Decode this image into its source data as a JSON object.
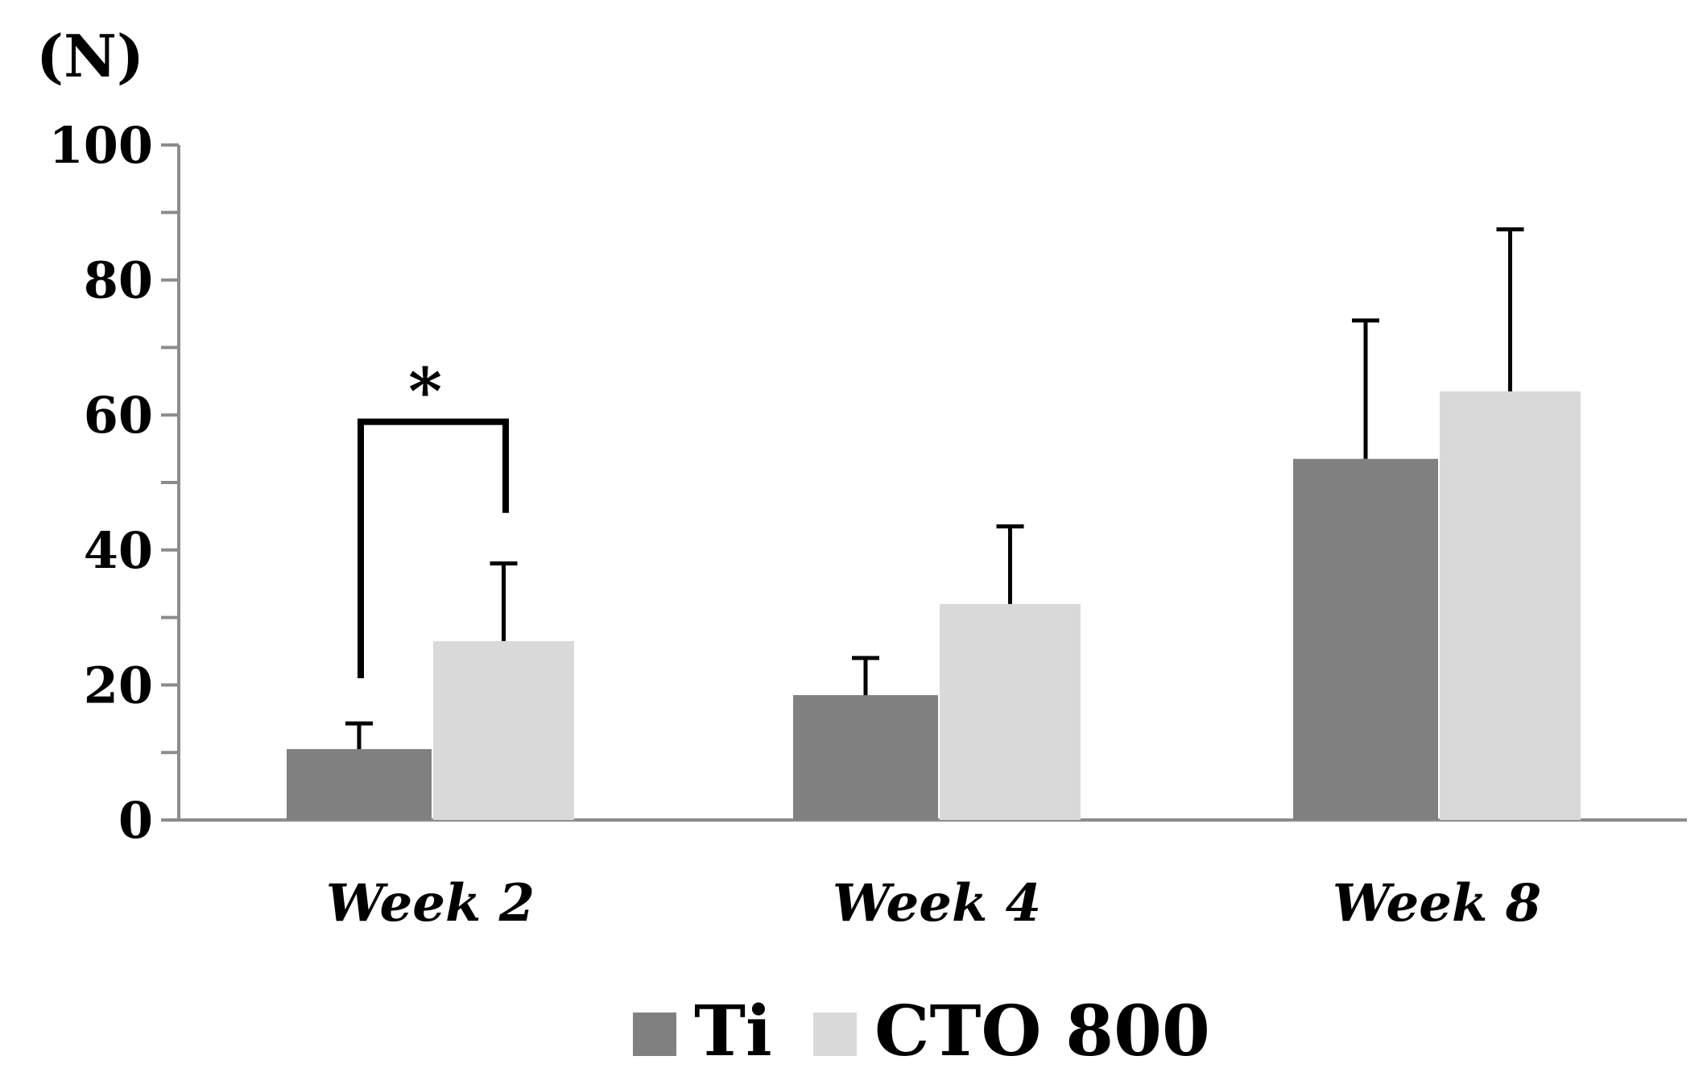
{
  "chart_data": {
    "type": "bar",
    "ylabel": "(N)",
    "xlabel": "",
    "ylim": [
      0,
      100
    ],
    "y_ticks": [
      "0",
      "20",
      "40",
      "60",
      "80",
      "100"
    ],
    "y_tick_values": [
      0,
      20,
      40,
      60,
      80,
      100
    ],
    "categories": [
      "Week 2",
      "Week 4",
      "Week 8"
    ],
    "series": [
      {
        "name": "Ti",
        "color": "#808080",
        "values": [
          10.5,
          18.5,
          53.5
        ],
        "errors": [
          3.8,
          5.5,
          20.5
        ]
      },
      {
        "name": "CTO 800",
        "color": "#d9d9d9",
        "values": [
          26.5,
          32.0,
          63.5
        ],
        "errors": [
          11.5,
          11.5,
          24.0
        ]
      }
    ],
    "legend": [
      "Ti",
      "CTO 800"
    ],
    "legend_position": "bottom-center",
    "annotations": [
      {
        "text": "*",
        "category": "Week 2",
        "between": [
          "Ti",
          "CTO 800"
        ]
      }
    ]
  }
}
